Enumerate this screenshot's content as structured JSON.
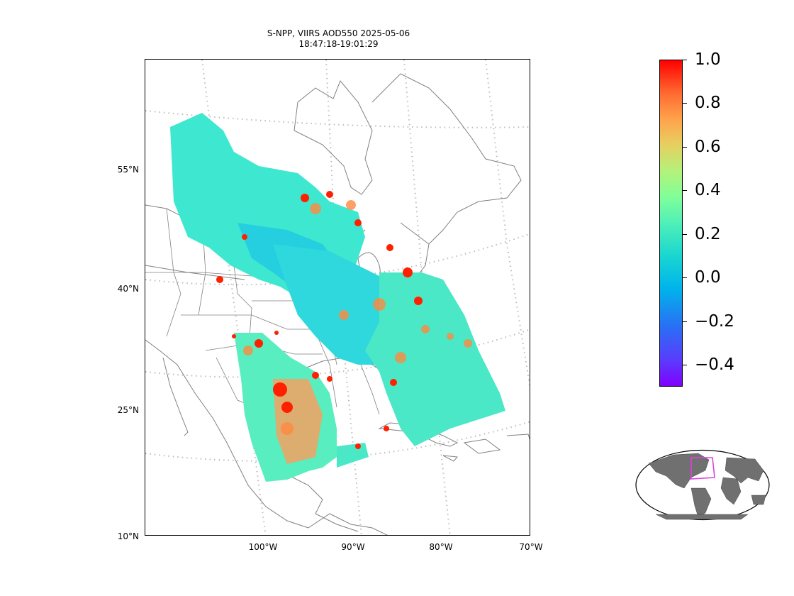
{
  "title": {
    "line1": "S-NPP, VIIRS AOD550 2025-05-06",
    "line2": "18:47:18-19:01:29"
  },
  "map": {
    "lat_labels": [
      "55°N",
      "40°N",
      "25°N",
      "10°N"
    ],
    "lon_labels": [
      "100°W",
      "90°W",
      "80°W",
      "70°W"
    ],
    "coastline_color": "#808080",
    "gridline_color": "#bbbbbb"
  },
  "colorbar": {
    "colormap": "rainbow",
    "ticks": [
      "1.0",
      "0.8",
      "0.6",
      "0.4",
      "0.2",
      "0.0",
      "−0.2",
      "−0.4"
    ],
    "tick_values": [
      1.0,
      0.8,
      0.6,
      0.4,
      0.2,
      0.0,
      -0.2,
      -0.4
    ],
    "vmin": -0.5,
    "vmax": 1.0,
    "low_color": "#8000ff",
    "mid_color": "#00b4eb",
    "high_color": "#ff0000"
  },
  "inset": {
    "projection": "robinson",
    "land_color": "#707070",
    "box_color": "#e040e0"
  }
}
